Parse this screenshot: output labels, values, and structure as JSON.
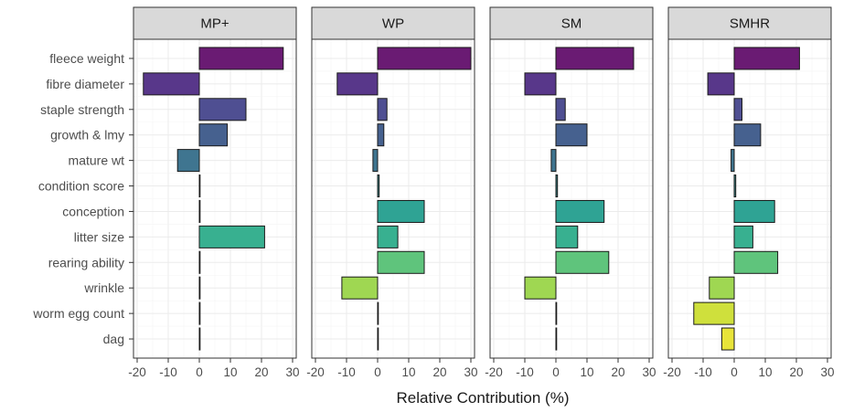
{
  "chart_data": {
    "type": "bar",
    "orientation": "horizontal",
    "xlabel": "Relative Contribution (%)",
    "xlim": [
      -20,
      30
    ],
    "x_ticks": [
      "-20",
      "-10",
      "0",
      "10",
      "20",
      "30"
    ],
    "grid": true,
    "categories": [
      "fleece weight",
      "fibre diameter",
      "staple strength",
      "growth & lmy",
      "mature wt",
      "condition score",
      "conception",
      "litter size",
      "rearing ability",
      "wrinkle",
      "worm egg count",
      "dag"
    ],
    "category_colors": [
      "#6a1b73",
      "#58378a",
      "#4f4f92",
      "#46618f",
      "#3f7590",
      "#3a8a8c",
      "#2fa394",
      "#38b090",
      "#5fc47c",
      "#9fd752",
      "#cfe03c",
      "#e8e43a"
    ],
    "panels": [
      {
        "name": "MP+",
        "values": [
          27,
          -18,
          15,
          9,
          -7,
          0,
          0,
          21,
          0,
          0,
          0,
          0
        ]
      },
      {
        "name": "WP",
        "values": [
          30,
          -13,
          3,
          2,
          -1.5,
          0.5,
          15,
          6.5,
          15,
          -11.5,
          0,
          0
        ]
      },
      {
        "name": "SM",
        "values": [
          25,
          -10,
          3,
          10,
          -1.5,
          0.5,
          15.5,
          7,
          17,
          -10,
          0,
          0
        ]
      },
      {
        "name": "SMHR",
        "values": [
          21,
          -8.5,
          2.5,
          8.5,
          -1,
          0.5,
          13,
          6,
          14,
          -8,
          -13,
          -4
        ]
      }
    ]
  }
}
